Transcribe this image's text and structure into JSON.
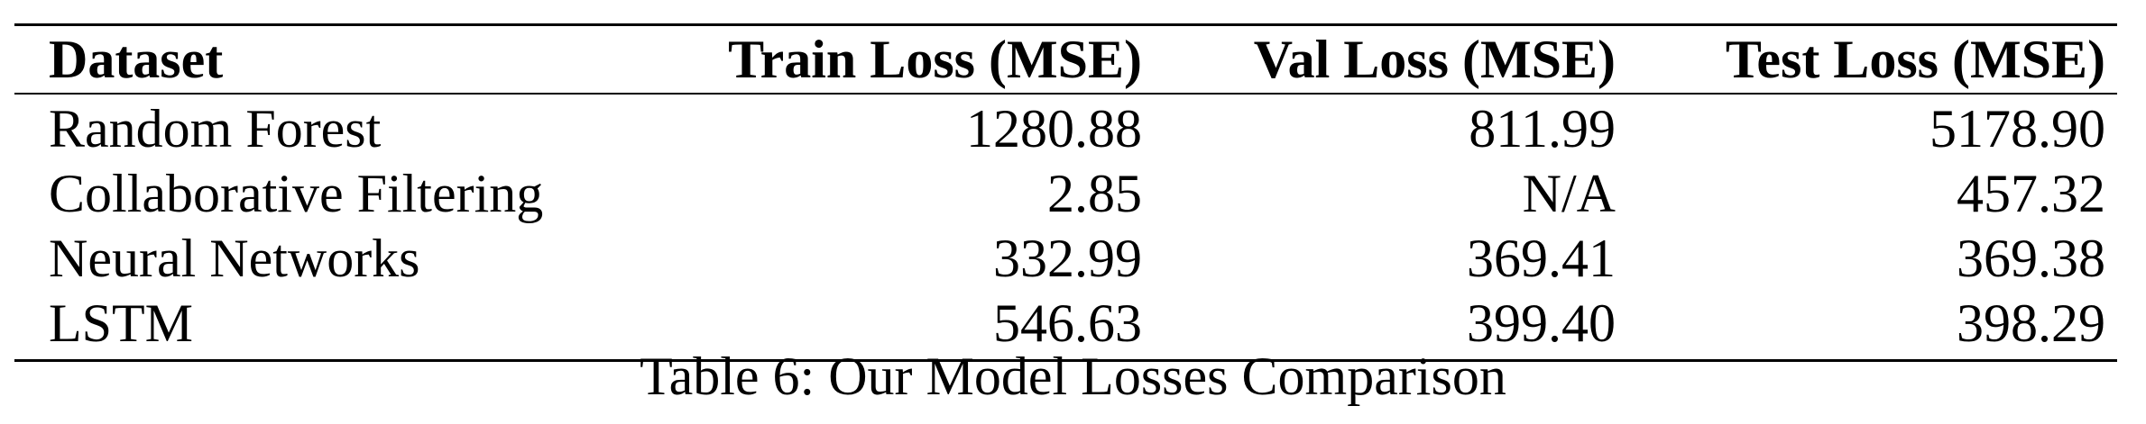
{
  "table": {
    "headers": [
      "Dataset",
      "Train Loss (MSE)",
      "Val Loss (MSE)",
      "Test Loss (MSE)"
    ],
    "rows": [
      [
        "Random Forest",
        "1280.88",
        "811.99",
        "5178.90"
      ],
      [
        "Collaborative Filtering",
        "2.85",
        "N/A",
        "457.32"
      ],
      [
        "Neural Networks",
        "332.99",
        "369.41",
        "369.38"
      ],
      [
        "LSTM",
        "546.63",
        "399.40",
        "398.29"
      ]
    ],
    "caption": "Table 6: Our Model Losses Comparison"
  }
}
